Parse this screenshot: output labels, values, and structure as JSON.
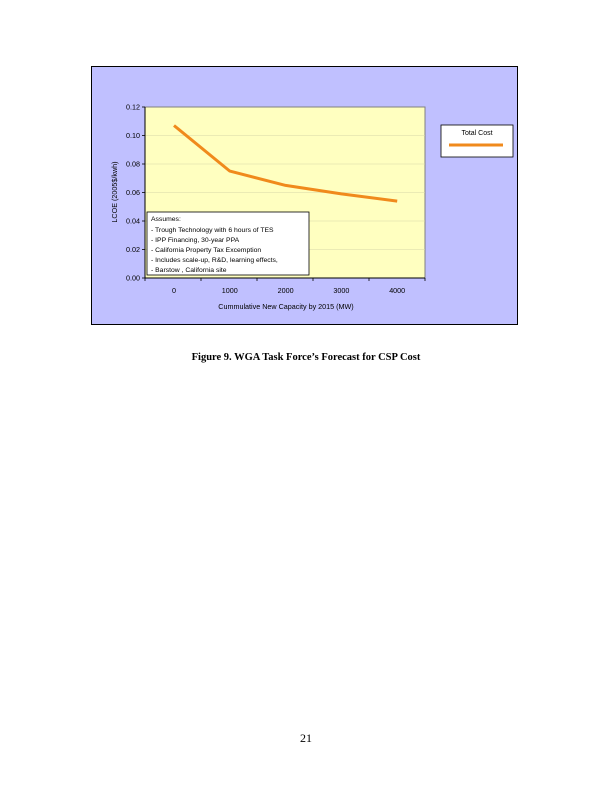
{
  "chart_data": {
    "type": "line",
    "title": "",
    "xlabel": "Cummulative New Capacity by 2015 (MW)",
    "ylabel": "LCOE (2005$/kwh)",
    "x": [
      0,
      1000,
      2000,
      3000,
      4000
    ],
    "categories": [
      "0",
      "1000",
      "2000",
      "3000",
      "4000"
    ],
    "series": [
      {
        "name": "Total Cost",
        "values": [
          0.107,
          0.075,
          0.065,
          0.059,
          0.054
        ],
        "color": "#f08a1c"
      }
    ],
    "ylim": [
      0.0,
      0.12
    ],
    "yticks": [
      "0.00",
      "0.02",
      "0.04",
      "0.06",
      "0.08",
      "0.10",
      "0.12"
    ],
    "xticks": [
      "0",
      "1000",
      "2000",
      "3000",
      "4000"
    ],
    "grid": true,
    "legend_position": "right",
    "annotation": {
      "title": "Assumes:",
      "lines": [
        "- Trough Technology with 6 hours of TES",
        "- IPP Financing, 30-year PPA",
        "- California Property Tax Excemption",
        "- Includes scale-up, R&D, learning effects,",
        "- Barstow , California site"
      ]
    },
    "colors": {
      "frame_bg": "#c0c0ff",
      "plot_bg": "#ffffc0",
      "line": "#f08a1c",
      "grid": "#d8d8a8"
    }
  },
  "figure": {
    "caption": "Figure 9. WGA Task Force’s Forecast for CSP Cost"
  },
  "page": {
    "number": "21"
  }
}
